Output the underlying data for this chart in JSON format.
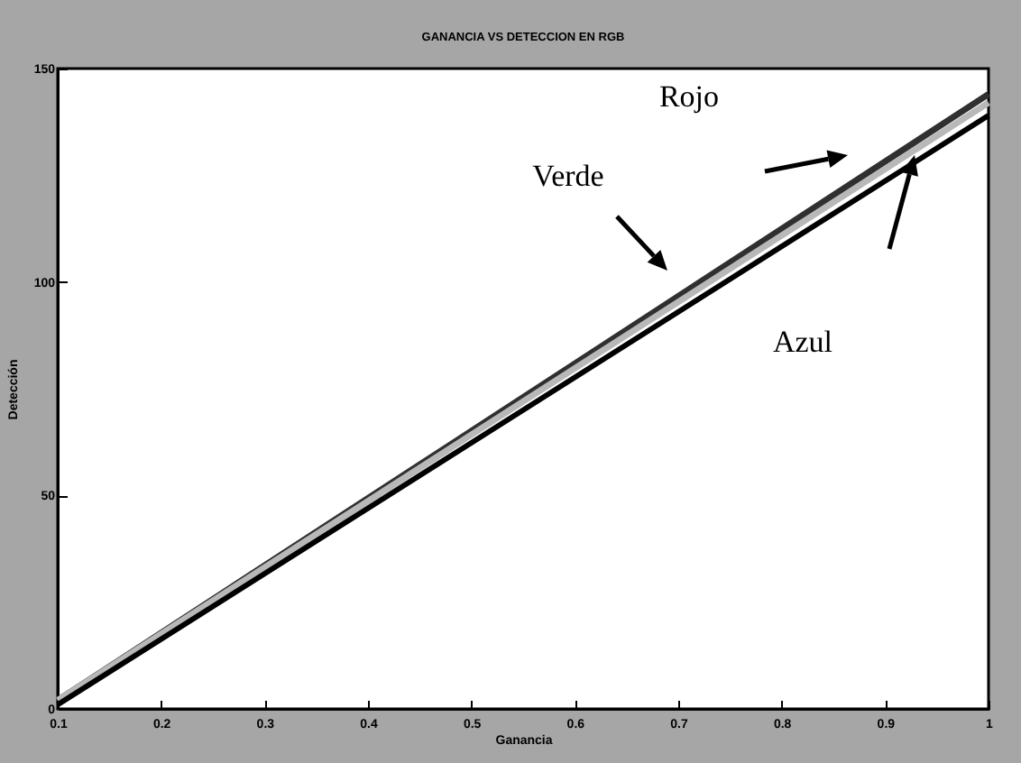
{
  "chart_data": {
    "type": "line",
    "title": "GANANCIA VS DETECCION EN RGB",
    "xlabel": "Ganancia",
    "ylabel": "Detección",
    "x": [
      0.1,
      1
    ],
    "series": [
      {
        "color": "#303030",
        "values": [
          2,
          144
        ]
      },
      {
        "color": "#b8b8b8",
        "values": [
          2,
          142
        ]
      },
      {
        "color": "#000000",
        "values": [
          1,
          139
        ]
      }
    ],
    "annotations": [
      "Verde",
      "Rojo",
      "Azul"
    ],
    "xlim": [
      0.1,
      1
    ],
    "xticks": [
      0.1,
      0.2,
      0.3,
      0.4,
      0.5,
      0.6,
      0.7,
      0.8,
      0.9,
      1
    ],
    "ylim": [
      0,
      150
    ],
    "yticks": [
      0,
      50,
      100,
      150
    ],
    "grid": false,
    "marker": "none",
    "line_style": "solid"
  }
}
